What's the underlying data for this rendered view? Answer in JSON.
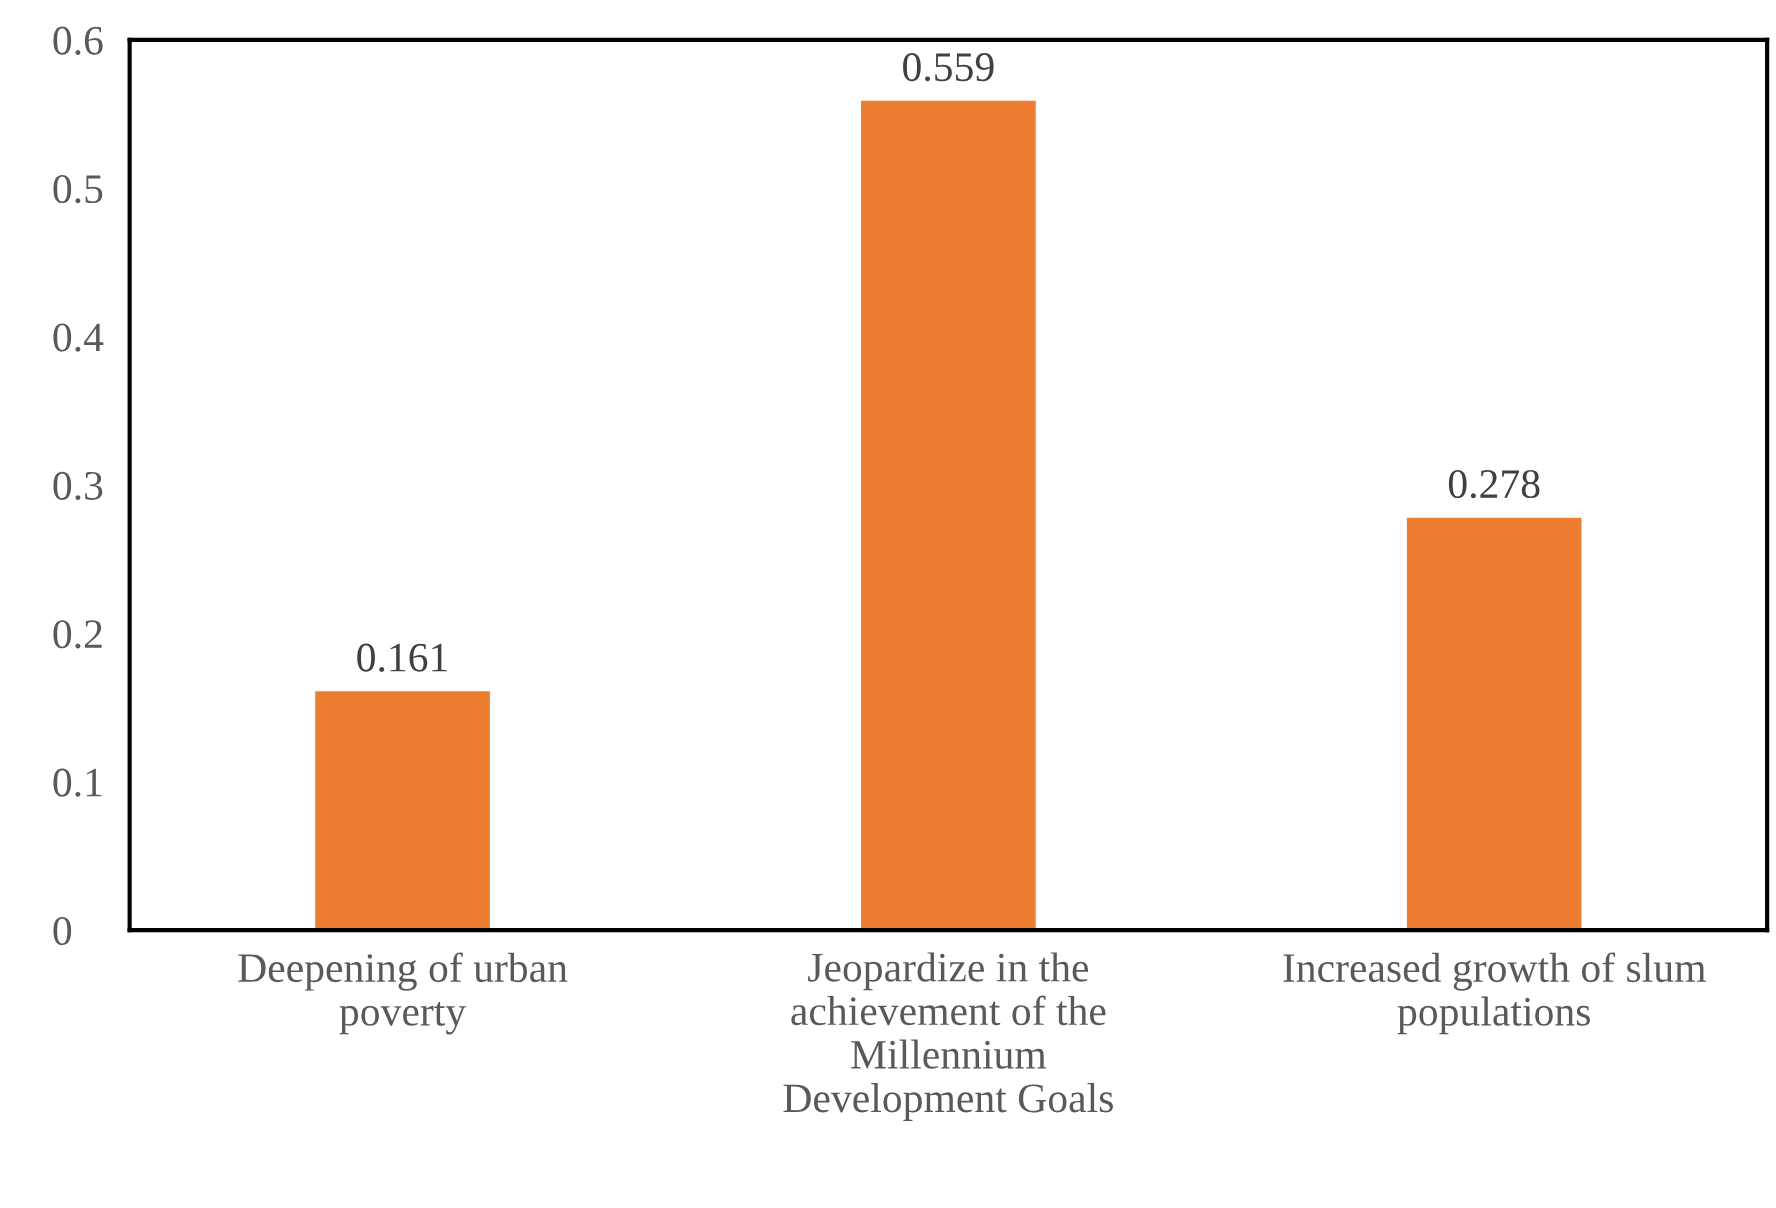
{
  "chart_data": {
    "type": "bar",
    "categories": [
      "Deepening of urban\npoverty",
      "Jeopardize in the\nachievement of the\nMillennium\nDevelopment Goals",
      "Increased growth of slum\npopulations"
    ],
    "values": [
      0.161,
      0.559,
      0.278
    ],
    "color": "#ed7d31",
    "ylim": [
      0,
      0.6
    ],
    "yticks": [
      0,
      0.1,
      0.2,
      0.3,
      0.4,
      0.5,
      0.6
    ],
    "data_labels": true,
    "grid": false,
    "legend": false
  }
}
